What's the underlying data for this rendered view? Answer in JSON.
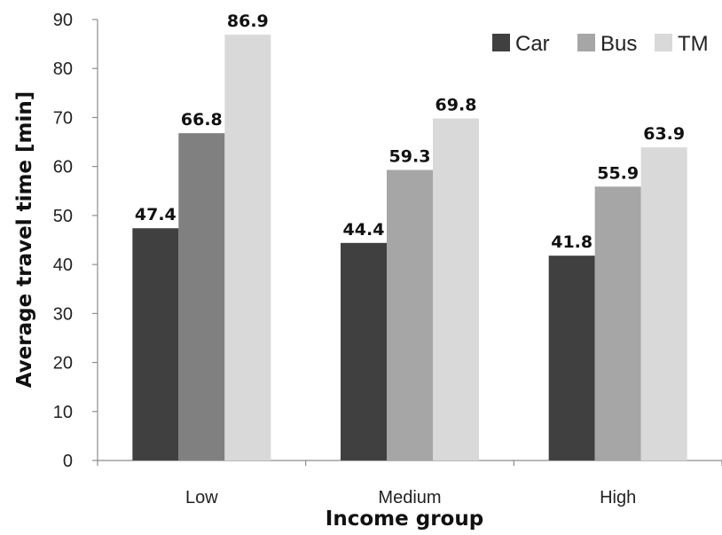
{
  "chart_data": {
    "type": "bar",
    "title": "",
    "xlabel": "Income group",
    "ylabel": "Average travel time [min]",
    "categories": [
      "Low",
      "Medium",
      "High"
    ],
    "ylim": [
      0,
      90
    ],
    "yticks": [
      0,
      10,
      20,
      30,
      40,
      50,
      60,
      70,
      80,
      90
    ],
    "grid": false,
    "legend_position": "top-right",
    "series": [
      {
        "name": "Car",
        "values": [
          47.4,
          44.4,
          41.8
        ],
        "labels": [
          "47.4",
          "44.4",
          "41.8"
        ],
        "color": "#404040"
      },
      {
        "name": "Bus",
        "values": [
          66.8,
          59.3,
          55.9
        ],
        "labels": [
          "66.8",
          "59.3",
          "55.9"
        ],
        "color": "#a6a6a6",
        "color_low": "#808080"
      },
      {
        "name": "TM",
        "values": [
          86.9,
          69.8,
          63.9
        ],
        "labels": [
          "86.9",
          "69.8",
          "63.9"
        ],
        "color": "#d9d9d9"
      }
    ]
  }
}
